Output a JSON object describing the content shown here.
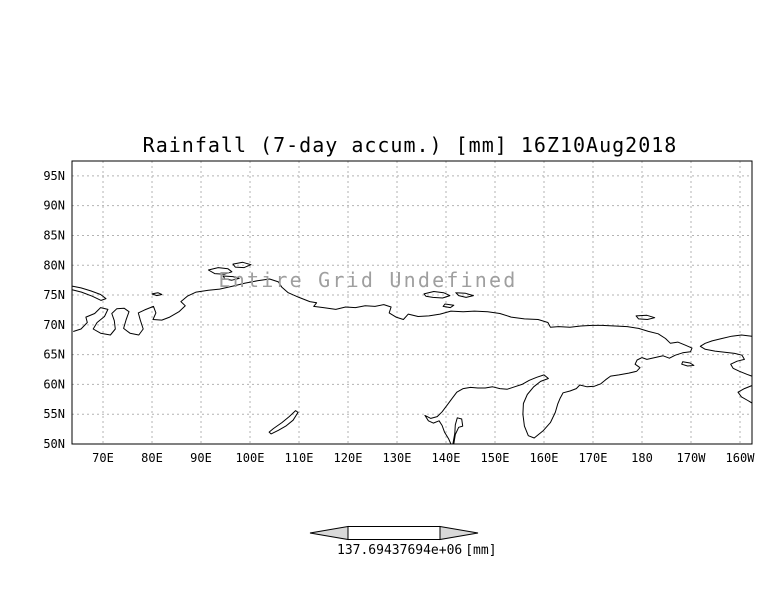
{
  "colors": {
    "grid": "#b3b3b3",
    "coast": "#000000",
    "border": "#000000",
    "annotation": "#9f9f9f",
    "arrow_fill": "#d9d9d9",
    "arrow_body": "#ffffff"
  },
  "chart_data": {
    "type": "map",
    "title": "Rainfall (7-day accum.) [mm] 16Z10Aug2018",
    "annotation": "Entire Grid Undefined",
    "data_values": "undefined (entire grid)",
    "grid": "dashed",
    "x_ticks": [
      "70E",
      "80E",
      "90E",
      "100E",
      "110E",
      "120E",
      "130E",
      "140E",
      "150E",
      "160E",
      "170E",
      "180",
      "170W",
      "160W"
    ],
    "x_tick_lons": [
      70,
      80,
      90,
      100,
      110,
      120,
      130,
      140,
      150,
      160,
      170,
      180,
      190,
      200
    ],
    "y_ticks": [
      "95N",
      "90N",
      "85N",
      "80N",
      "75N",
      "70N",
      "65N",
      "60N",
      "55N",
      "50N"
    ],
    "y_tick_lats": [
      95,
      90,
      85,
      80,
      75,
      70,
      65,
      60,
      55,
      50
    ],
    "lon_range": [
      63.67,
      202.45
    ],
    "lat_range": [
      50,
      97.5
    ],
    "colorbar_label": "137.69437694e+06",
    "colorbar_units": "[mm]"
  },
  "coastlines": [
    [
      [
        64,
        68.9
      ],
      [
        65.5,
        69.3
      ],
      [
        66.8,
        70.4
      ],
      [
        66.5,
        71.3
      ],
      [
        68.3,
        71.9
      ],
      [
        69.5,
        72.9
      ],
      [
        71,
        72.6
      ],
      [
        70.3,
        71.4
      ],
      [
        68.8,
        70.4
      ],
      [
        68,
        69.3
      ],
      [
        69.5,
        68.6
      ],
      [
        71.5,
        68.3
      ],
      [
        72.5,
        69.3
      ],
      [
        72.3,
        70.7
      ],
      [
        71.8,
        71.9
      ],
      [
        72.8,
        72.7
      ],
      [
        74.3,
        72.8
      ],
      [
        75.3,
        72.2
      ],
      [
        74.7,
        70.8
      ],
      [
        74.2,
        69.4
      ],
      [
        75.5,
        68.6
      ],
      [
        77.3,
        68.3
      ],
      [
        78.2,
        69.3
      ],
      [
        77.6,
        70.8
      ],
      [
        77.2,
        72
      ],
      [
        78.5,
        72.5
      ],
      [
        80.3,
        73.1
      ],
      [
        80.8,
        72
      ],
      [
        80.2,
        70.9
      ],
      [
        82,
        70.8
      ],
      [
        83.6,
        71.3
      ],
      [
        85.5,
        72.2
      ],
      [
        86.8,
        73.2
      ],
      [
        85.9,
        73.9
      ],
      [
        87.2,
        74.8
      ],
      [
        89,
        75.5
      ],
      [
        91.5,
        75.8
      ],
      [
        93.8,
        76
      ],
      [
        96.5,
        76.5
      ],
      [
        99,
        77
      ],
      [
        101.5,
        77.4
      ],
      [
        104,
        77.7
      ],
      [
        105.8,
        77.2
      ],
      [
        106.5,
        76.3
      ],
      [
        107.8,
        75.4
      ],
      [
        110,
        74.6
      ],
      [
        112.2,
        73.9
      ],
      [
        113.6,
        73.7
      ],
      [
        113,
        73.1
      ],
      [
        115,
        72.9
      ],
      [
        117.5,
        72.6
      ],
      [
        119.5,
        73
      ],
      [
        121.5,
        72.9
      ],
      [
        123.5,
        73.2
      ],
      [
        125.5,
        73.1
      ],
      [
        127.3,
        73.4
      ],
      [
        128.8,
        73
      ],
      [
        128.4,
        72
      ],
      [
        129.8,
        71.3
      ],
      [
        131.3,
        70.9
      ],
      [
        132.3,
        71.8
      ],
      [
        134.3,
        71.4
      ],
      [
        136.5,
        71.5
      ],
      [
        138.8,
        71.8
      ],
      [
        141,
        72.3
      ],
      [
        143.5,
        72.2
      ],
      [
        145.8,
        72.3
      ],
      [
        148.5,
        72.2
      ],
      [
        151,
        71.9
      ],
      [
        153.3,
        71.3
      ],
      [
        156,
        71
      ],
      [
        158.8,
        70.9
      ],
      [
        160.8,
        70.4
      ],
      [
        161.3,
        69.6
      ],
      [
        163,
        69.7
      ],
      [
        165.3,
        69.6
      ],
      [
        167.5,
        69.8
      ],
      [
        169.8,
        69.9
      ],
      [
        171.8,
        69.9
      ],
      [
        174.5,
        69.8
      ],
      [
        177,
        69.7
      ],
      [
        179.3,
        69.4
      ],
      [
        181.3,
        68.9
      ],
      [
        183.3,
        68.5
      ],
      [
        184.8,
        67.7
      ],
      [
        185.8,
        66.9
      ],
      [
        187.3,
        67.1
      ],
      [
        188.8,
        66.6
      ],
      [
        190.2,
        66.1
      ],
      [
        189.9,
        65.5
      ],
      [
        188.3,
        65.3
      ],
      [
        186.8,
        64.9
      ],
      [
        185.6,
        64.4
      ],
      [
        184.3,
        64.8
      ],
      [
        182.6,
        64.5
      ],
      [
        181,
        64.2
      ],
      [
        180,
        64.5
      ],
      [
        179,
        64.1
      ],
      [
        178.6,
        63.4
      ],
      [
        179.6,
        62.8
      ],
      [
        178.9,
        62.2
      ],
      [
        177.3,
        61.9
      ],
      [
        175.3,
        61.6
      ],
      [
        173.6,
        61.4
      ],
      [
        172.6,
        60.8
      ],
      [
        171.6,
        60.1
      ],
      [
        170.3,
        59.7
      ],
      [
        168.8,
        59.6
      ],
      [
        167.3,
        59.9
      ],
      [
        166.6,
        59.3
      ],
      [
        165.3,
        58.9
      ],
      [
        163.9,
        58.6
      ],
      [
        163.3,
        57.7
      ],
      [
        162.8,
        56.7
      ],
      [
        162.3,
        55.3
      ],
      [
        161.3,
        53.6
      ],
      [
        159.8,
        52.2
      ],
      [
        158,
        51
      ],
      [
        156.8,
        51.4
      ],
      [
        156,
        53
      ],
      [
        155.7,
        55
      ],
      [
        155.8,
        56.8
      ],
      [
        156.6,
        58.3
      ],
      [
        157.9,
        59.6
      ],
      [
        159.3,
        60.5
      ],
      [
        160.9,
        61
      ],
      [
        160,
        61.6
      ],
      [
        158.5,
        61.2
      ],
      [
        157,
        60.7
      ],
      [
        155.5,
        60
      ],
      [
        154,
        59.6
      ],
      [
        152.5,
        59.2
      ],
      [
        151,
        59.3
      ],
      [
        149.5,
        59.6
      ],
      [
        148,
        59.4
      ],
      [
        146.5,
        59.4
      ],
      [
        145,
        59.5
      ],
      [
        143.5,
        59.3
      ],
      [
        142.2,
        58.7
      ],
      [
        141.2,
        57.6
      ],
      [
        140.2,
        56.5
      ],
      [
        139.2,
        55.4
      ],
      [
        138.2,
        54.6
      ],
      [
        136.9,
        54.3
      ],
      [
        135.7,
        54.8
      ],
      [
        136.4,
        53.9
      ],
      [
        137.4,
        53.5
      ],
      [
        138.6,
        53.9
      ],
      [
        139.2,
        53.1
      ],
      [
        139.7,
        52
      ],
      [
        140.5,
        50.9
      ],
      [
        141,
        50
      ]
    ],
    [
      [
        63.7,
        76.5
      ],
      [
        65.5,
        76.2
      ],
      [
        67.5,
        75.7
      ],
      [
        69.5,
        75.1
      ],
      [
        70.6,
        74.4
      ],
      [
        69.6,
        74.1
      ],
      [
        67.8,
        74.8
      ],
      [
        65.6,
        75.5
      ],
      [
        63.7,
        75.9
      ]
    ],
    [
      [
        80,
        75.2
      ],
      [
        81.2,
        75.4
      ],
      [
        82,
        75.1
      ],
      [
        81,
        74.9
      ],
      [
        80,
        75.2
      ]
    ],
    [
      [
        91.5,
        79.2
      ],
      [
        93.5,
        79.6
      ],
      [
        95.5,
        79.4
      ],
      [
        96.3,
        78.9
      ],
      [
        94.8,
        78.5
      ],
      [
        92.8,
        78.6
      ],
      [
        91.5,
        79.2
      ]
    ],
    [
      [
        96.5,
        80.2
      ],
      [
        98.5,
        80.5
      ],
      [
        100.2,
        80.1
      ],
      [
        98.8,
        79.6
      ],
      [
        97,
        79.7
      ],
      [
        96.5,
        80.2
      ]
    ],
    [
      [
        94.5,
        78.2
      ],
      [
        96.5,
        78.1
      ],
      [
        97.8,
        77.8
      ],
      [
        96.3,
        77.5
      ],
      [
        94.9,
        77.7
      ],
      [
        94.5,
        78.2
      ]
    ],
    [
      [
        135.5,
        75.2
      ],
      [
        137.5,
        75.6
      ],
      [
        139.5,
        75.4
      ],
      [
        140.8,
        74.9
      ],
      [
        139.3,
        74.5
      ],
      [
        137.3,
        74.6
      ],
      [
        135.9,
        74.8
      ],
      [
        135.5,
        75.2
      ]
    ],
    [
      [
        142,
        75.4
      ],
      [
        144,
        75.3
      ],
      [
        145.6,
        74.9
      ],
      [
        144.1,
        74.6
      ],
      [
        142.6,
        74.9
      ],
      [
        142,
        75.4
      ]
    ],
    [
      [
        139.8,
        73.5
      ],
      [
        141.6,
        73.3
      ],
      [
        140.9,
        72.9
      ],
      [
        139.4,
        73.1
      ],
      [
        139.8,
        73.5
      ]
    ],
    [
      [
        178.8,
        71.5
      ],
      [
        181,
        71.6
      ],
      [
        182.6,
        71.2
      ],
      [
        181.1,
        70.9
      ],
      [
        179.3,
        71
      ],
      [
        178.8,
        71.5
      ]
    ],
    [
      [
        141.6,
        50
      ],
      [
        141.9,
        51.6
      ],
      [
        142.6,
        52.8
      ],
      [
        143.4,
        53
      ],
      [
        143.2,
        54.2
      ],
      [
        142.3,
        54.4
      ],
      [
        141.9,
        53.2
      ],
      [
        141.8,
        51.8
      ],
      [
        141.4,
        50
      ]
    ],
    [
      [
        188.3,
        63.8
      ],
      [
        189.8,
        63.6
      ],
      [
        190.6,
        63.2
      ],
      [
        189.3,
        63.1
      ],
      [
        188.1,
        63.4
      ],
      [
        188.3,
        63.8
      ]
    ],
    [
      [
        202.4,
        68.1
      ],
      [
        200.3,
        68.3
      ],
      [
        198.3,
        68.1
      ],
      [
        196.3,
        67.7
      ],
      [
        194.3,
        67.3
      ],
      [
        192.9,
        66.9
      ],
      [
        191.9,
        66.4
      ],
      [
        192.9,
        65.9
      ],
      [
        194.9,
        65.6
      ],
      [
        196.9,
        65.4
      ],
      [
        198.9,
        65.2
      ],
      [
        200.4,
        64.9
      ],
      [
        200.9,
        64.2
      ],
      [
        199.4,
        63.9
      ],
      [
        198.1,
        63.4
      ],
      [
        198.6,
        62.7
      ],
      [
        199.9,
        62.2
      ],
      [
        201.4,
        61.7
      ],
      [
        202.4,
        61.4
      ]
    ],
    [
      [
        202.4,
        59.8
      ],
      [
        200.9,
        59.3
      ],
      [
        199.6,
        58.7
      ],
      [
        200.3,
        57.9
      ],
      [
        201.6,
        57.3
      ],
      [
        202.4,
        56.9
      ]
    ],
    [
      [
        104.3,
        51.7
      ],
      [
        105.8,
        52.3
      ],
      [
        107.3,
        53
      ],
      [
        108.8,
        54
      ],
      [
        109.8,
        55.3
      ],
      [
        109.3,
        55.6
      ],
      [
        108,
        54.6
      ],
      [
        106.5,
        53.6
      ],
      [
        104.8,
        52.6
      ],
      [
        103.9,
        52
      ],
      [
        104.3,
        51.7
      ]
    ]
  ]
}
